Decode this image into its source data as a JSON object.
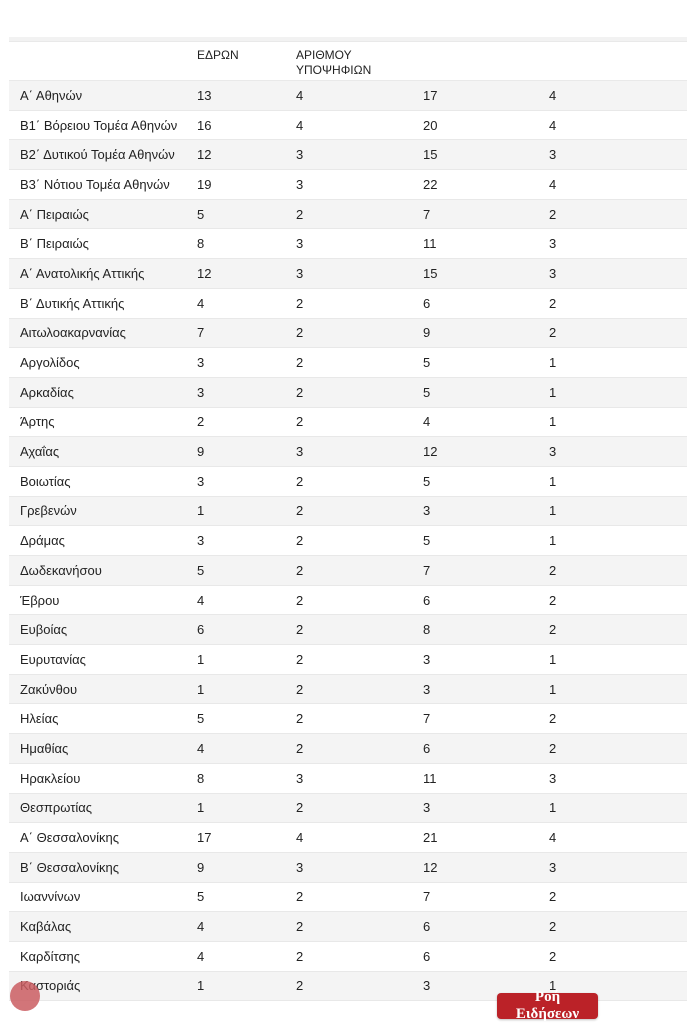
{
  "table": {
    "headers": {
      "district": "",
      "seats": "ΕΔΡΩΝ",
      "candidates": "ΑΡΙΘΜΟΥ ΥΠΟΨΗΦΙΩΝ",
      "col4": "",
      "col5": ""
    },
    "rows": [
      {
        "district": "Α΄ Αθηνών",
        "c1": "13",
        "c2": "4",
        "c3": "17",
        "c4": "4"
      },
      {
        "district": "Β1΄ Βόρειου Τομέα Αθηνών",
        "c1": "16",
        "c2": "4",
        "c3": "20",
        "c4": "4"
      },
      {
        "district": "Β2΄ Δυτικού Τομέα Αθηνών",
        "c1": "12",
        "c2": "3",
        "c3": "15",
        "c4": "3"
      },
      {
        "district": "Β3΄ Νότιου Τομέα Αθηνών",
        "c1": "19",
        "c2": "3",
        "c3": "22",
        "c4": "4"
      },
      {
        "district": "Α΄ Πειραιώς",
        "c1": "5",
        "c2": "2",
        "c3": "7",
        "c4": "2"
      },
      {
        "district": "Β΄ Πειραιώς",
        "c1": "8",
        "c2": "3",
        "c3": "11",
        "c4": "3"
      },
      {
        "district": "Α΄ Ανατολικής Αττικής",
        "c1": "12",
        "c2": "3",
        "c3": "15",
        "c4": "3"
      },
      {
        "district": "Β΄ Δυτικής Αττικής",
        "c1": "4",
        "c2": "2",
        "c3": "6",
        "c4": "2"
      },
      {
        "district": "Αιτωλοακαρνανίας",
        "c1": "7",
        "c2": "2",
        "c3": "9",
        "c4": "2"
      },
      {
        "district": "Αργολίδος",
        "c1": "3",
        "c2": "2",
        "c3": "5",
        "c4": "1"
      },
      {
        "district": "Αρκαδίας",
        "c1": "3",
        "c2": "2",
        "c3": "5",
        "c4": "1"
      },
      {
        "district": "Άρτης",
        "c1": "2",
        "c2": "2",
        "c3": "4",
        "c4": "1"
      },
      {
        "district": "Αχαΐας",
        "c1": "9",
        "c2": "3",
        "c3": "12",
        "c4": "3"
      },
      {
        "district": "Βοιωτίας",
        "c1": "3",
        "c2": "2",
        "c3": "5",
        "c4": "1"
      },
      {
        "district": "Γρεβενών",
        "c1": "1",
        "c2": "2",
        "c3": "3",
        "c4": "1"
      },
      {
        "district": "Δράμας",
        "c1": "3",
        "c2": "2",
        "c3": "5",
        "c4": "1"
      },
      {
        "district": "Δωδεκανήσου",
        "c1": "5",
        "c2": "2",
        "c3": "7",
        "c4": "2"
      },
      {
        "district": "Έβρου",
        "c1": "4",
        "c2": "2",
        "c3": "6",
        "c4": "2"
      },
      {
        "district": "Ευβοίας",
        "c1": "6",
        "c2": "2",
        "c3": "8",
        "c4": "2"
      },
      {
        "district": "Ευρυτανίας",
        "c1": "1",
        "c2": "2",
        "c3": "3",
        "c4": "1"
      },
      {
        "district": "Ζακύνθου",
        "c1": "1",
        "c2": "2",
        "c3": "3",
        "c4": "1"
      },
      {
        "district": "Ηλείας",
        "c1": "5",
        "c2": "2",
        "c3": "7",
        "c4": "2"
      },
      {
        "district": "Ημαθίας",
        "c1": "4",
        "c2": "2",
        "c3": "6",
        "c4": "2"
      },
      {
        "district": "Ηρακλείου",
        "c1": "8",
        "c2": "3",
        "c3": "11",
        "c4": "3"
      },
      {
        "district": "Θεσπρωτίας",
        "c1": "1",
        "c2": "2",
        "c3": "3",
        "c4": "1"
      },
      {
        "district": "Α΄ Θεσσαλονίκης",
        "c1": "17",
        "c2": "4",
        "c3": "21",
        "c4": "4"
      },
      {
        "district": "Β΄ Θεσσαλονίκης",
        "c1": "9",
        "c2": "3",
        "c3": "12",
        "c4": "3"
      },
      {
        "district": "Ιωαννίνων",
        "c1": "5",
        "c2": "2",
        "c3": "7",
        "c4": "2"
      },
      {
        "district": "Καβάλας",
        "c1": "4",
        "c2": "2",
        "c3": "6",
        "c4": "2"
      },
      {
        "district": "Καρδίτσης",
        "c1": "4",
        "c2": "2",
        "c3": "6",
        "c4": "2"
      },
      {
        "district": "Καστοριάς",
        "c1": "1",
        "c2": "2",
        "c3": "3",
        "c4": "1"
      }
    ]
  },
  "news_feed_button": {
    "label": "Ροή Ειδήσεων",
    "background": "#bb2228",
    "text_color": "#ffffff"
  },
  "cursor_marker": {
    "color": "#ca5d61"
  },
  "colors": {
    "row_stripe": "#f4f4f4",
    "row_border": "#e8e8e8",
    "text": "#222222"
  }
}
